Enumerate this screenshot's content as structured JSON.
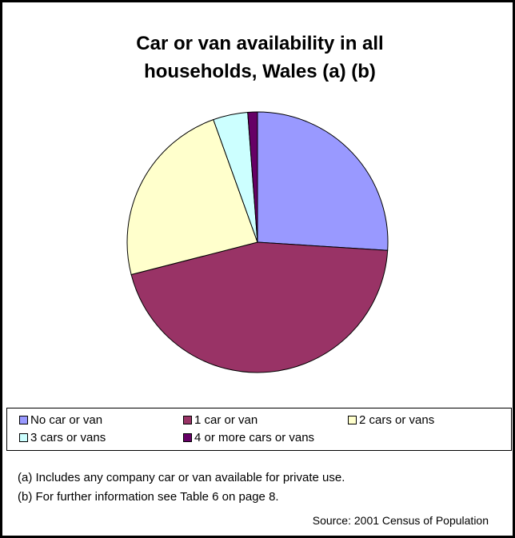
{
  "chart_data": {
    "type": "pie",
    "title": "Car or van availability in all households, Wales (a) (b)",
    "categories": [
      "No car or van",
      "1 car or van",
      "2 cars or vans",
      "3 cars or vans",
      "4 or more cars or vans"
    ],
    "values": [
      26,
      45,
      23.5,
      4.3,
      1.2
    ],
    "colors": [
      "#9999ff",
      "#993366",
      "#ffffcc",
      "#ccffff",
      "#660066"
    ],
    "notes": [
      "(a) Includes any company car or van available for private use.",
      "(b) For further information see Table 6 on page 8."
    ],
    "source": "Source: 2001 Census of Population"
  }
}
